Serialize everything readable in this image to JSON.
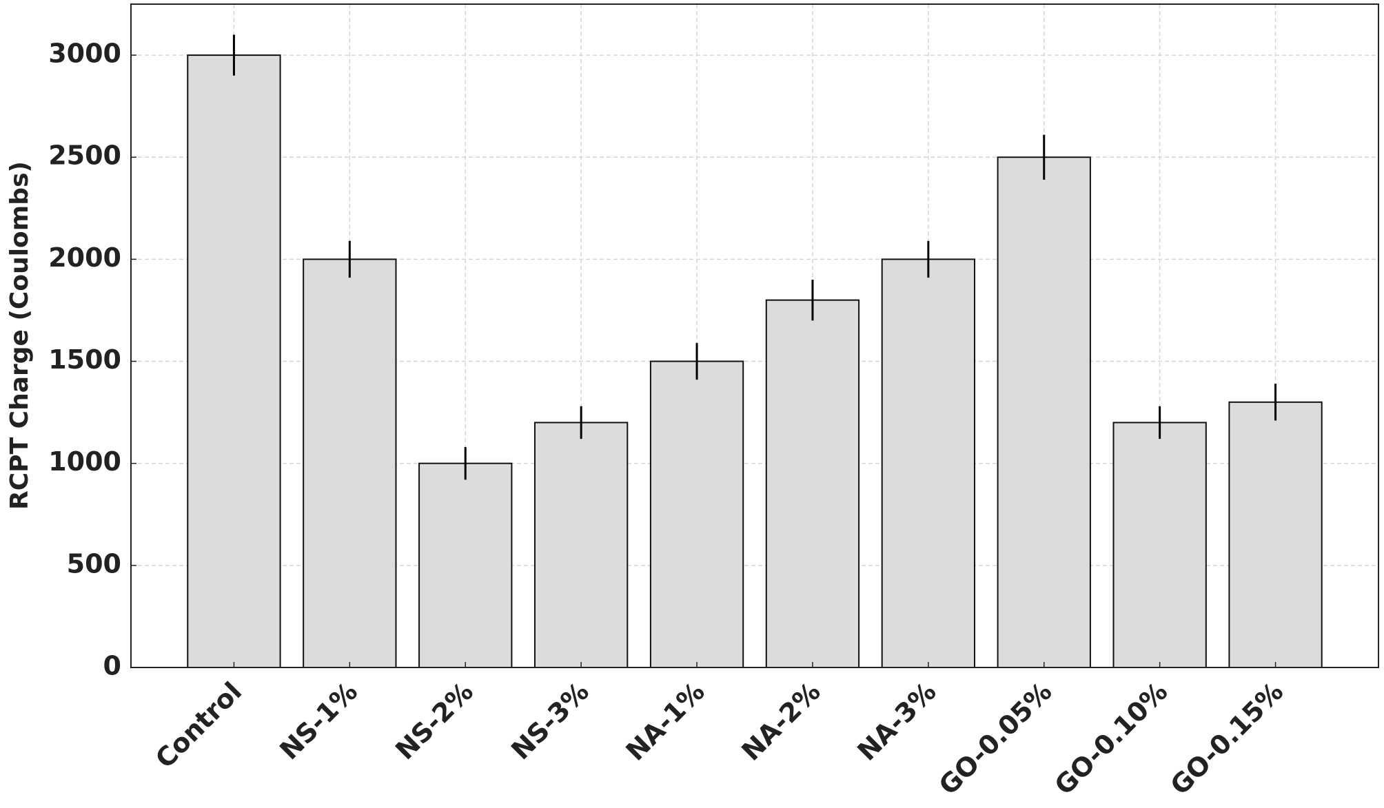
{
  "chart_data": {
    "type": "bar",
    "y_label": "RCPT Charge (Coulombs)",
    "categories": [
      "Control",
      "NS-1%",
      "NS-2%",
      "NS-3%",
      "NA-1%",
      "NA-2%",
      "NA-3%",
      "GO-0.05%",
      "GO-0.10%",
      "GO-0.15%"
    ],
    "values": [
      3000,
      2000,
      1000,
      1200,
      1500,
      1800,
      2000,
      2500,
      1200,
      1300
    ],
    "errors": [
      100,
      90,
      80,
      80,
      90,
      100,
      90,
      110,
      80,
      90
    ],
    "color": "#dcdcdc",
    "ylim": [
      0,
      3250
    ],
    "yticks": [
      0,
      500,
      1000,
      1500,
      2000,
      2500,
      3000
    ],
    "grid": true
  }
}
